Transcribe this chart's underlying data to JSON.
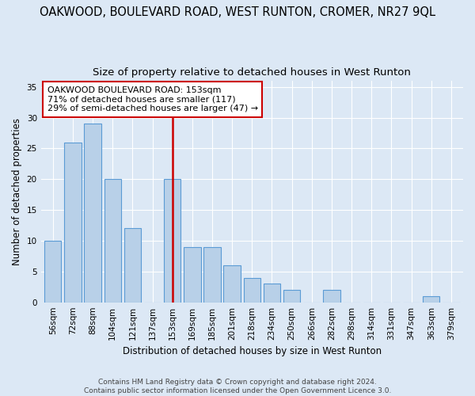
{
  "title": "OAKWOOD, BOULEVARD ROAD, WEST RUNTON, CROMER, NR27 9QL",
  "subtitle": "Size of property relative to detached houses in West Runton",
  "xlabel": "Distribution of detached houses by size in West Runton",
  "ylabel": "Number of detached properties",
  "footer": "Contains HM Land Registry data © Crown copyright and database right 2024.\nContains public sector information licensed under the Open Government Licence 3.0.",
  "bin_labels": [
    "56sqm",
    "72sqm",
    "88sqm",
    "104sqm",
    "121sqm",
    "137sqm",
    "153sqm",
    "169sqm",
    "185sqm",
    "201sqm",
    "218sqm",
    "234sqm",
    "250sqm",
    "266sqm",
    "282sqm",
    "298sqm",
    "314sqm",
    "331sqm",
    "347sqm",
    "363sqm",
    "379sqm"
  ],
  "bar_values": [
    10,
    26,
    29,
    20,
    12,
    0,
    20,
    9,
    9,
    6,
    4,
    3,
    2,
    0,
    2,
    0,
    0,
    0,
    0,
    1,
    0
  ],
  "property_line_index": 6,
  "property_size": "153sqm",
  "bar_color": "#b8d0e8",
  "bar_edge_color": "#5b9bd5",
  "line_color": "#cc0000",
  "annotation_line1": "OAKWOOD BOULEVARD ROAD: 153sqm",
  "annotation_line2": "71% of detached houses are smaller (117)",
  "annotation_line3": "29% of semi-detached houses are larger (47) →",
  "ylim": [
    0,
    36
  ],
  "yticks": [
    0,
    5,
    10,
    15,
    20,
    25,
    30,
    35
  ],
  "background_color": "#dce8f5",
  "plot_background": "#dce8f5",
  "grid_color": "#ffffff",
  "annotation_box_color": "#ffffff",
  "annotation_box_edge": "#cc0000",
  "title_fontsize": 10.5,
  "subtitle_fontsize": 9.5,
  "axis_label_fontsize": 8.5,
  "tick_fontsize": 7.5,
  "annotation_fontsize": 8,
  "footer_fontsize": 6.5
}
